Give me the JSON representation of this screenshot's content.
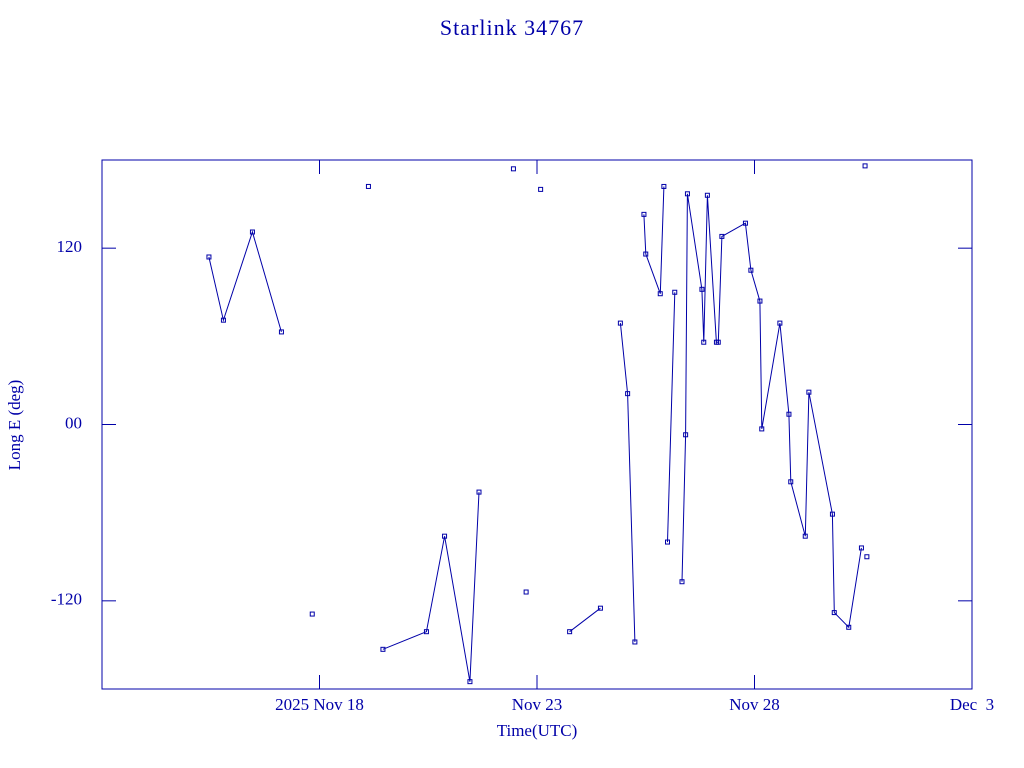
{
  "chart_data": {
    "type": "line",
    "title": "Starlink 34767",
    "x_label": "Time(UTC)",
    "y_label": "Long E (deg)",
    "color": "#0000a8",
    "xlim": [
      "2025-11-13",
      "2025-12-03"
    ],
    "xticks": [
      {
        "value": "2025-11-18",
        "label": "2025 Nov 18"
      },
      {
        "value": "2025-11-23",
        "label": "Nov 23"
      },
      {
        "value": "2025-11-28",
        "label": "Nov 28"
      },
      {
        "value": "2025-12-03",
        "label": "Dec  3"
      }
    ],
    "ylim": [
      -180,
      180
    ],
    "yticks": [
      -120,
      {
        "value": 0,
        "label": "00"
      },
      120
    ],
    "x": [
      "2025-11-15T11:00",
      "2025-11-15T19:00",
      "2025-11-16T11:00",
      "2025-11-17T03:00",
      null,
      "2025-11-17T20:00",
      null,
      "2025-11-19T03:00",
      null,
      "2025-11-19T11:00",
      "2025-11-20T11:00",
      "2025-11-20T21:00",
      "2025-11-21T11:00",
      "2025-11-21T16:00",
      null,
      "2025-11-22T11:00",
      null,
      "2025-11-22T18:00",
      null,
      "2025-11-23T02:00",
      null,
      "2025-11-23T18:00",
      "2025-11-24T11:00",
      null,
      "2025-11-24T22:00",
      "2025-11-25T02:00",
      "2025-11-25T06:00",
      null,
      "2025-11-25T11:00",
      "2025-11-25T12:00",
      "2025-11-25T20:00",
      "2025-11-25T22:00",
      null,
      "2025-11-26T00:00",
      "2025-11-26T04:00",
      null,
      "2025-11-26T08:00",
      "2025-11-26T10:00",
      "2025-11-26T11:00",
      "2025-11-26T19:00",
      "2025-11-26T20:00",
      "2025-11-26T22:00",
      "2025-11-27T03:00",
      "2025-11-27T04:00",
      "2025-11-27T06:00",
      "2025-11-27T19:00",
      "2025-11-27T22:00",
      "2025-11-28T03:00",
      "2025-11-28T04:00",
      "2025-11-28T14:00",
      "2025-11-28T19:00",
      "2025-11-28T20:00",
      "2025-11-29T04:00",
      "2025-11-29T06:00",
      "2025-11-29T19:00",
      "2025-11-29T20:00",
      "2025-11-30T04:00",
      "2025-11-30T11:00",
      null,
      "2025-11-30T13:00",
      null,
      "2025-11-30T14:00"
    ],
    "values": [
      114,
      71,
      131,
      63,
      null,
      -129,
      null,
      162,
      null,
      -153,
      -141,
      -76,
      -175,
      -46,
      null,
      174,
      null,
      -114,
      null,
      160,
      null,
      -141,
      -125,
      null,
      69,
      21,
      -148,
      null,
      143,
      116,
      89,
      162,
      null,
      -80,
      90,
      null,
      -107,
      -7,
      157,
      92,
      56,
      156,
      56,
      56,
      128,
      137,
      105,
      84,
      -3,
      69,
      7,
      -39,
      -76,
      22,
      -61,
      -128,
      -138,
      -84,
      null,
      176,
      null,
      -90
    ]
  }
}
